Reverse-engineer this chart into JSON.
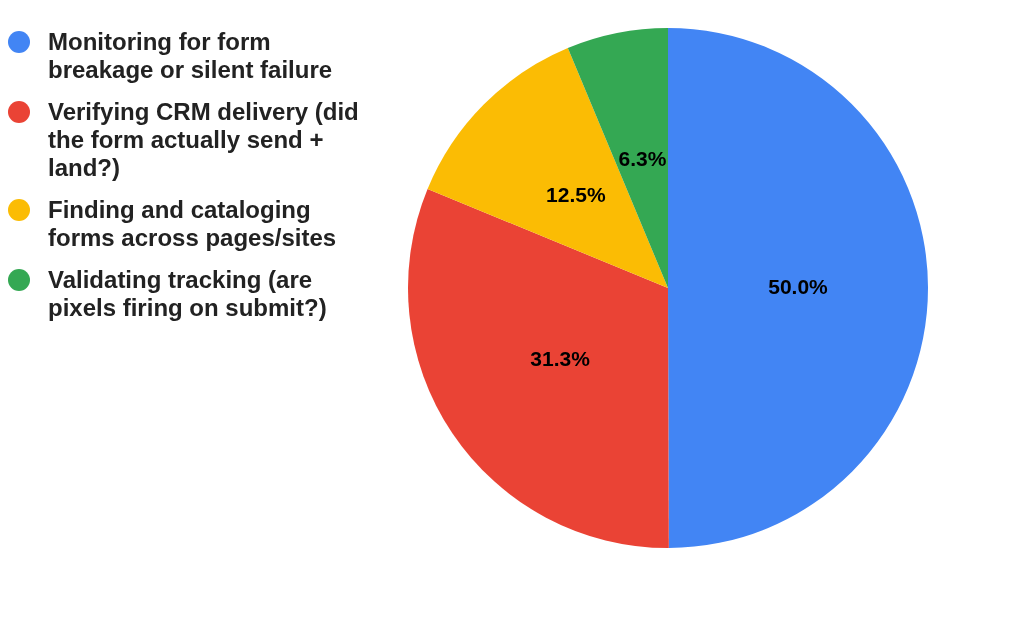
{
  "chart_data": {
    "type": "pie",
    "categories": [
      "Monitoring for form breakage or silent failure",
      "Verifying CRM delivery (did the form actually send + land?)",
      "Finding and cataloging forms across pages/sites",
      "Validating tracking (are pixels firing on submit?)"
    ],
    "values": [
      50.0,
      31.3,
      12.5,
      6.3
    ],
    "colors": [
      "#4285f4",
      "#ea4335",
      "#fbbc04",
      "#34a853"
    ],
    "value_labels": [
      "50.0%",
      "31.3%",
      "12.5%",
      "6.3%"
    ],
    "legend": "left"
  }
}
